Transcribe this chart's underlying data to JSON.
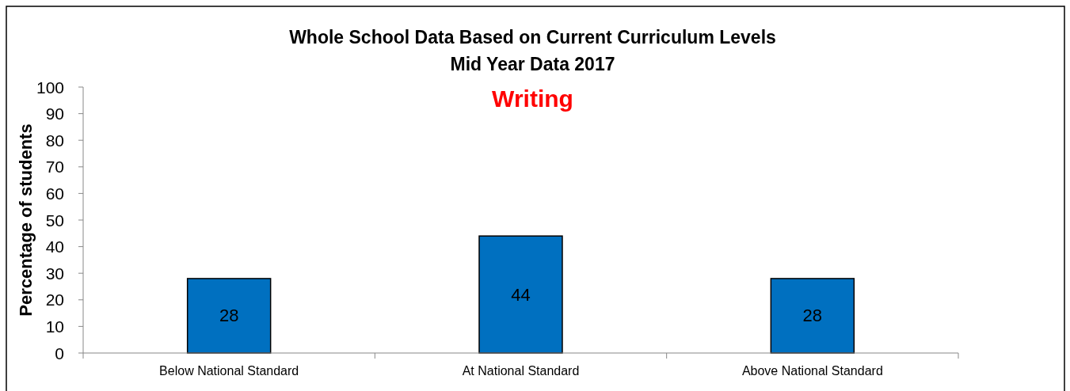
{
  "chart_data": {
    "type": "bar",
    "title": "Whole School Data Based on Current Curriculum Levels\nMid Year Data 2017",
    "subtitle": "Writing",
    "ylabel": "Percentage of students",
    "categories": [
      "Below National Standard",
      "At National Standard",
      "Above National Standard"
    ],
    "values": [
      28,
      44,
      28
    ],
    "color": "#0070c0",
    "ylim": [
      0,
      100
    ],
    "yticks": [
      0,
      10,
      20,
      30,
      40,
      50,
      60,
      70,
      80,
      90,
      100
    ],
    "grid": false,
    "data_labels": true
  }
}
